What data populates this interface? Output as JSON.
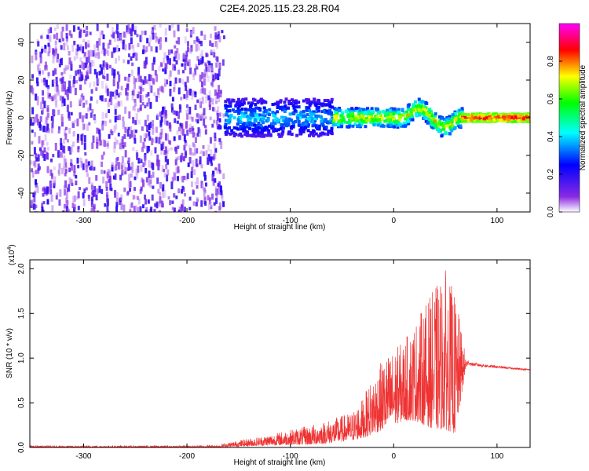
{
  "title": "C2E4.2025.115.23.28.R04",
  "chart_data": [
    {
      "type": "heatmap",
      "xlabel": "Height of straight line (km)",
      "ylabel": "Frequency (Hz)",
      "xlim": [
        -352,
        132
      ],
      "ylim": [
        -50,
        50
      ],
      "x_ticks": [
        -300,
        -200,
        -100,
        0,
        100
      ],
      "x_tick_labels": [
        "-300",
        "-200",
        "-100",
        "0",
        "100"
      ],
      "y_ticks": [
        40,
        20,
        0,
        -20,
        -40
      ],
      "y_tick_labels": [
        "40",
        "20",
        "0",
        "-20",
        "-40"
      ],
      "colorbar": {
        "label": "Normalized spectral amplitude",
        "range": [
          0,
          1
        ],
        "ticks": [
          0.0,
          0.2,
          0.4,
          0.6,
          0.8
        ],
        "tick_labels": [
          "0.0",
          "0.2",
          "0.4",
          "0.6",
          "0.8"
        ],
        "colormap": [
          "#ffffff",
          "#8a2be2",
          "#0000ff",
          "#00ffff",
          "#00ff00",
          "#ffff00",
          "#ff0000",
          "#ff00ff"
        ]
      },
      "regions": [
        {
          "x_range": [
            -352,
            -165
          ],
          "freq_span": [
            -50,
            50
          ],
          "amplitude": [
            0.05,
            0.25
          ]
        },
        {
          "x_range": [
            -165,
            -60
          ],
          "freq_center": 0,
          "freq_halfwidth": 10,
          "amplitude": [
            0.2,
            0.45
          ]
        },
        {
          "x_range": [
            -60,
            65
          ],
          "freq_center": 0,
          "freq_halfwidth": 5,
          "amplitude": [
            0.3,
            0.8
          ]
        },
        {
          "x_range": [
            65,
            132
          ],
          "freq_center": 0,
          "freq_halfwidth": 2,
          "amplitude": [
            0.6,
            0.95
          ]
        }
      ]
    },
    {
      "type": "line",
      "xlabel": "Height of straight line (km)",
      "ylabel": "SNR (10 * v/v)",
      "y_multiplier": "(x10",
      "y_multiplier_exp": "4",
      "y_multiplier_close": ")",
      "xlim": [
        -352,
        132
      ],
      "ylim": [
        0,
        2.1
      ],
      "x_ticks": [
        -300,
        -200,
        -100,
        0,
        100
      ],
      "x_tick_labels": [
        "-300",
        "-200",
        "-100",
        "0",
        "100"
      ],
      "y_ticks": [
        0.0,
        0.5,
        1.0,
        1.5,
        2.0
      ],
      "y_tick_labels": [
        "0.0",
        "0.5",
        "1.0",
        "1.5",
        "2.0"
      ],
      "color": "#ee3333",
      "envelope": {
        "x": [
          -352,
          -200,
          -170,
          -150,
          -130,
          -100,
          -80,
          -60,
          -40,
          -30,
          -20,
          -10,
          0,
          10,
          20,
          30,
          40,
          50,
          60,
          70,
          75,
          90,
          110,
          132
        ],
        "low": [
          0.0,
          0.0,
          0.0,
          0.01,
          0.02,
          0.03,
          0.03,
          0.05,
          0.08,
          0.1,
          0.15,
          0.2,
          0.25,
          0.3,
          0.3,
          0.25,
          0.2,
          0.2,
          0.15,
          0.9,
          0.9,
          0.88,
          0.87,
          0.85
        ],
        "high": [
          0.02,
          0.02,
          0.03,
          0.08,
          0.12,
          0.2,
          0.25,
          0.32,
          0.4,
          0.55,
          0.8,
          1.0,
          1.1,
          1.2,
          1.4,
          1.6,
          1.8,
          2.0,
          1.7,
          1.0,
          0.95,
          0.93,
          0.9,
          0.88
        ]
      }
    }
  ]
}
